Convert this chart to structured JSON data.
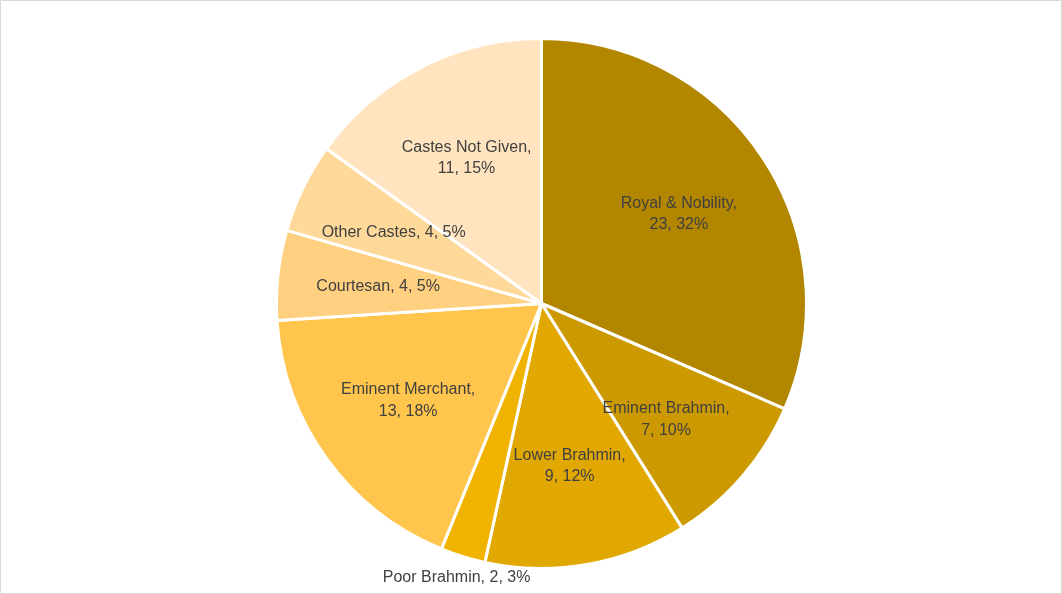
{
  "chart_data": {
    "type": "pie",
    "categories": [
      "Royal & Nobility",
      "Eminent Brahmin",
      "Lower Brahmin",
      "Poor Brahmin",
      "Eminent Merchant",
      "Courtesan",
      "Other Castes",
      "Castes Not Given"
    ],
    "values": [
      23,
      7,
      9,
      2,
      13,
      4,
      4,
      11
    ],
    "colors": [
      "#b38600",
      "#cc9a00",
      "#e0a800",
      "#f0b400",
      "#ffc54d",
      "#ffd080",
      "#ffd999",
      "#ffe4bf"
    ],
    "value_labels": [
      ", 23, 32%",
      ", 7, 10%",
      ", 9, 12%",
      ", 2, 3%",
      ", 13, 18%",
      ", 4, 5%",
      ", 4, 5%",
      ", 11, 15%"
    ]
  }
}
